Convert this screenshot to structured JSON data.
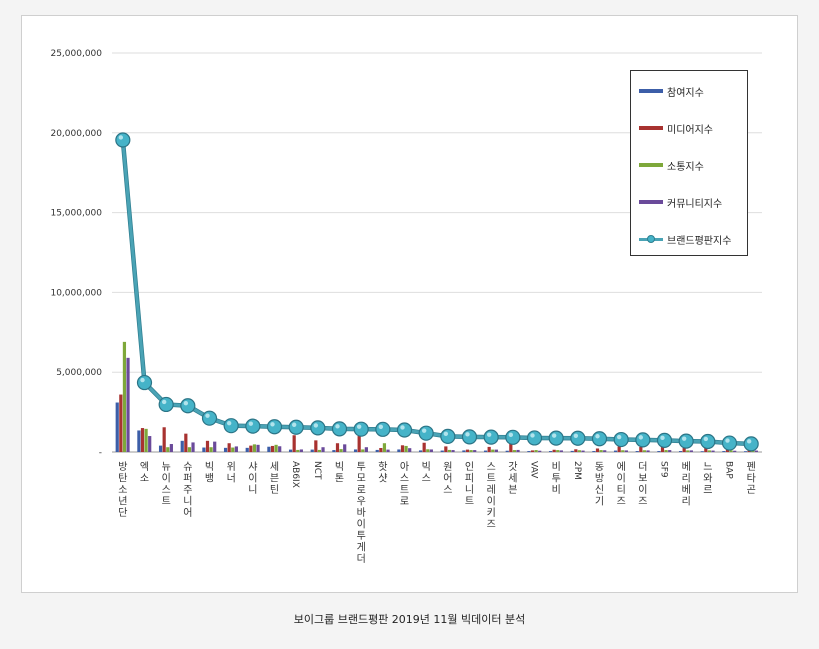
{
  "caption": "보이그룹 브랜드평판 2019년 11월 빅데이터 분석",
  "colors": {
    "participation": "#3c5ea8",
    "media": "#a83230",
    "communication": "#7ea83a",
    "community": "#6a4a9a",
    "brand_line": "#4aa3b5",
    "brand_marker": "#45b3c8"
  },
  "chart_data": {
    "type": "bar",
    "y_ticks": [
      "25,000,000",
      "20,000,000",
      "15,000,000",
      "10,000,000",
      "5,000,000",
      "-"
    ],
    "ylim": [
      0,
      25000000
    ],
    "grid": true,
    "legend_position": "top-right",
    "categories": [
      "방탄소년단",
      "엑소",
      "뉴이스트",
      "슈퍼주니어",
      "빅뱅",
      "위너",
      "샤이니",
      "세븐틴",
      "AB6IX",
      "NCT",
      "빅톤",
      "투모로우바이투게더",
      "핫샷",
      "아스트로",
      "빅스",
      "원어스",
      "인피니트",
      "스트레이키즈",
      "갓세븐",
      "VAV",
      "비투비",
      "2PM",
      "동방신기",
      "에이티즈",
      "더보이즈",
      "SF9",
      "베리베리",
      "느와르",
      "BAP",
      "펜타곤"
    ],
    "series": [
      {
        "name": "참여지수",
        "type": "bar",
        "values": [
          3100000,
          1350000,
          400000,
          700000,
          280000,
          260000,
          260000,
          330000,
          150000,
          150000,
          120000,
          160000,
          130000,
          160000,
          100000,
          90000,
          100000,
          90000,
          80000,
          60000,
          60000,
          70000,
          60000,
          90000,
          60000,
          60000,
          60000,
          50000,
          60000,
          50000
        ]
      },
      {
        "name": "미디어지수",
        "type": "bar",
        "values": [
          3600000,
          1500000,
          1550000,
          1150000,
          700000,
          550000,
          400000,
          380000,
          1050000,
          730000,
          550000,
          1000000,
          250000,
          420000,
          580000,
          350000,
          150000,
          320000,
          550000,
          100000,
          140000,
          170000,
          220000,
          350000,
          320000,
          400000,
          250000,
          300000,
          250000,
          300000
        ]
      },
      {
        "name": "소통지수",
        "type": "bar",
        "values": [
          6900000,
          1450000,
          300000,
          300000,
          300000,
          280000,
          480000,
          450000,
          130000,
          130000,
          180000,
          160000,
          550000,
          380000,
          170000,
          130000,
          120000,
          150000,
          120000,
          120000,
          120000,
          110000,
          120000,
          110000,
          110000,
          120000,
          100000,
          100000,
          100000,
          100000
        ]
      },
      {
        "name": "커뮤니티지수",
        "type": "bar",
        "values": [
          5900000,
          1000000,
          500000,
          600000,
          650000,
          350000,
          450000,
          360000,
          160000,
          300000,
          480000,
          300000,
          150000,
          240000,
          160000,
          120000,
          120000,
          150000,
          130000,
          80000,
          100000,
          90000,
          110000,
          100000,
          100000,
          120000,
          100000,
          90000,
          80000,
          90000
        ]
      },
      {
        "name": "브랜드평판지수",
        "type": "line",
        "values": [
          19550000,
          4350000,
          2980000,
          2900000,
          2120000,
          1650000,
          1620000,
          1580000,
          1550000,
          1510000,
          1450000,
          1430000,
          1420000,
          1380000,
          1180000,
          980000,
          950000,
          930000,
          920000,
          880000,
          870000,
          860000,
          830000,
          780000,
          760000,
          730000,
          680000,
          660000,
          560000,
          510000
        ]
      }
    ]
  }
}
